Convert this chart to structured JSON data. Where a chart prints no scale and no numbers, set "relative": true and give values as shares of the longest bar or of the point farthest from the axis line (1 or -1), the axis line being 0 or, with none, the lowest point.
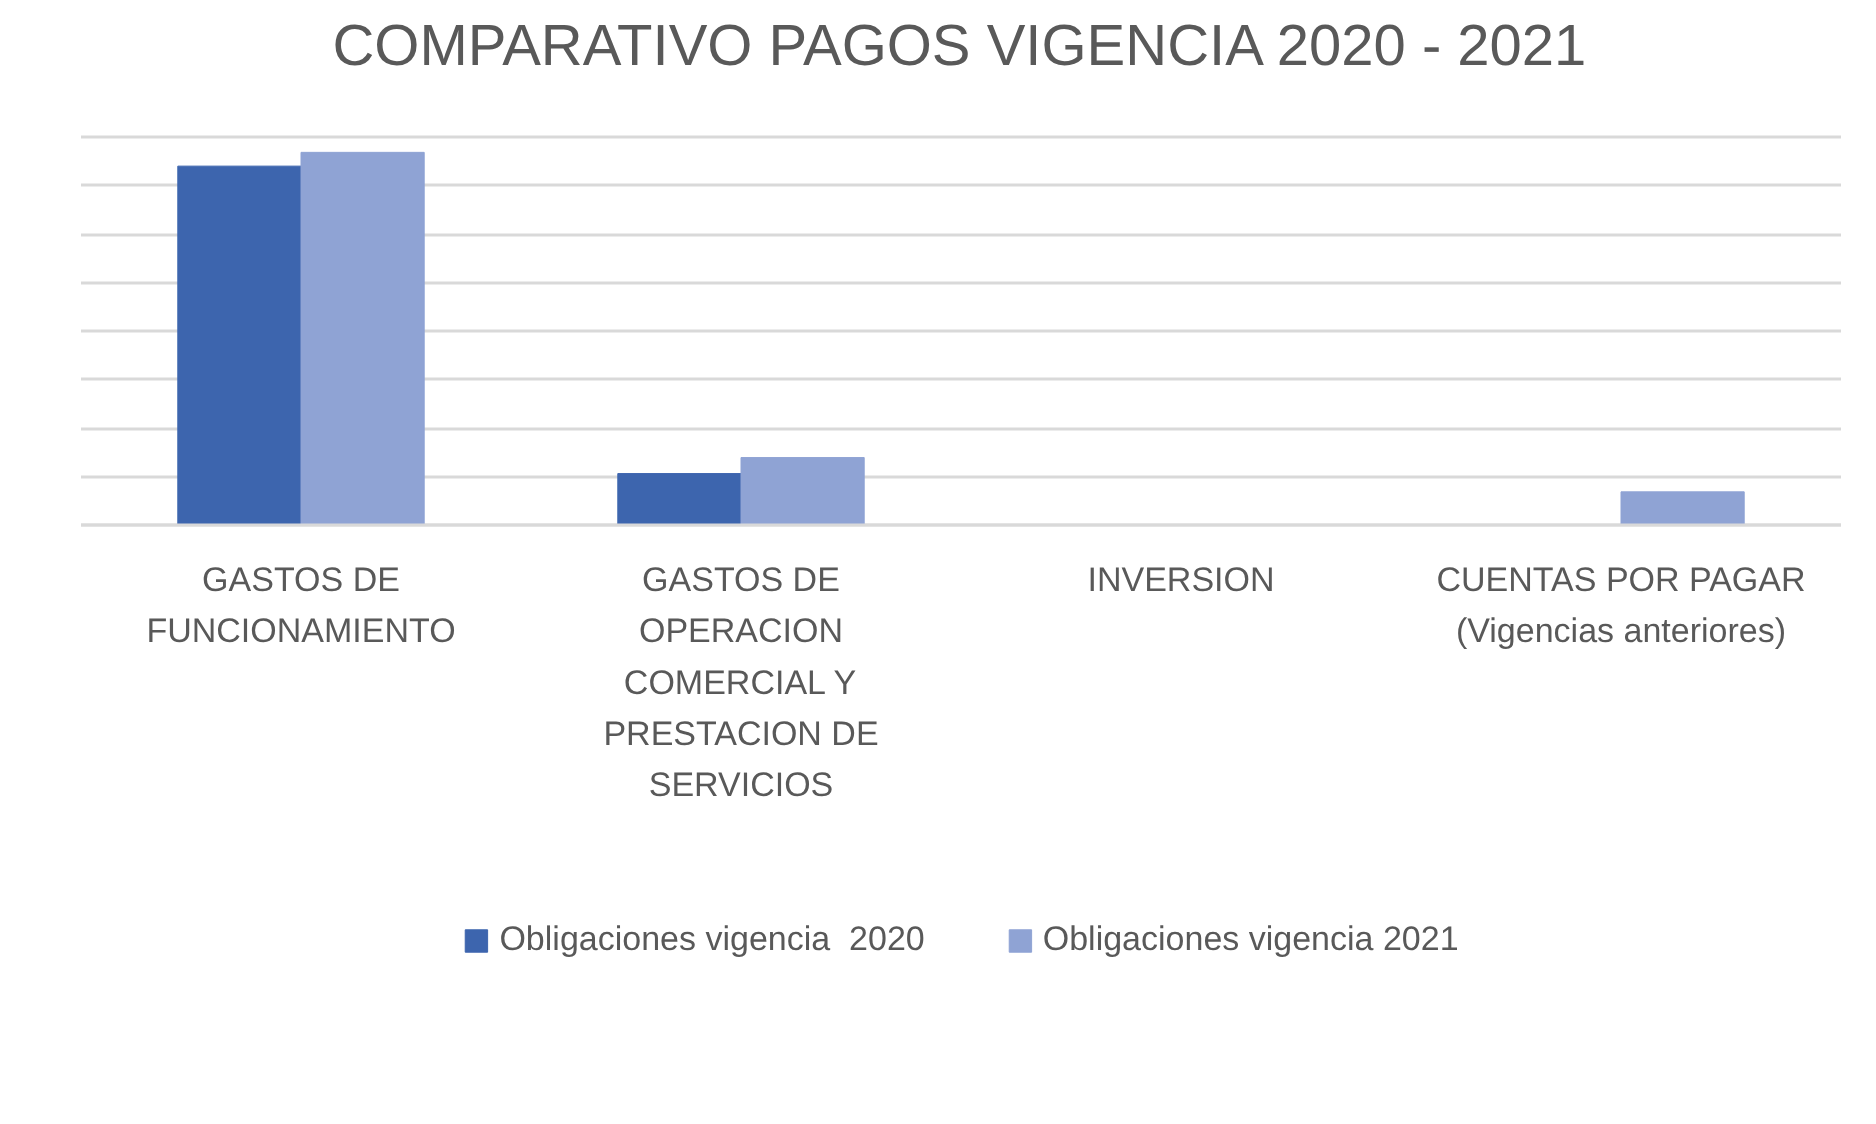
{
  "chart_data": {
    "type": "bar",
    "title": "COMPARATIVO PAGOS VIGENCIA 2020 - 2021",
    "relative": true,
    "grid": "y",
    "legend": "bottom",
    "categories": [
      "GASTOS DE\nFUNCIONAMIENTO",
      "GASTOS DE\nOPERACION\nCOMERCIAL Y\nPRESTACION DE\nSERVICIOS",
      "INVERSION",
      "CUENTAS POR PAGAR\n(Vigencias anteriores)"
    ],
    "series": [
      {
        "name": "Obligaciones vigencia  2020",
        "color": "#3d65ae",
        "values": [
          0.963,
          0.138,
          0,
          0
        ]
      },
      {
        "name": "Obligaciones vigencia 2021",
        "color": "#8fa3d4",
        "values": [
          1,
          0.181,
          0,
          0.089
        ]
      }
    ]
  }
}
